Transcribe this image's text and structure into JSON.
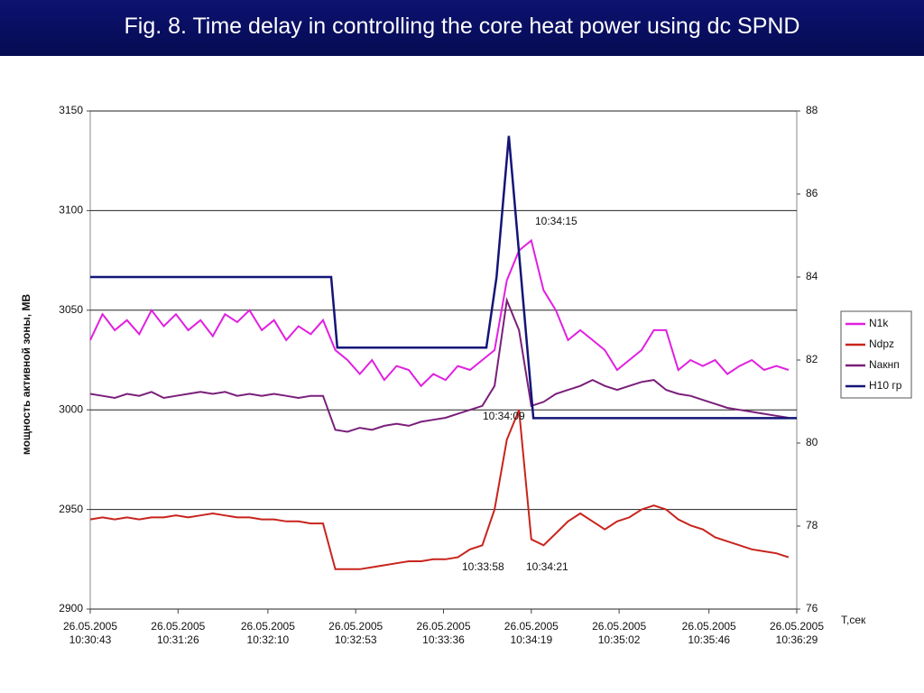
{
  "chart_data": {
    "type": "line",
    "title": "Fig. 8. Time delay in controlling the core heat power using dc SPND",
    "ylabel": "мощность активной зоны, МВ",
    "xlabel": "T,сек",
    "xlim": [
      0,
      346
    ],
    "xticks": [
      {
        "value": 0,
        "label": "26.05.2005 10:30:43"
      },
      {
        "value": 43,
        "label": "26.05.2005 10:31:26"
      },
      {
        "value": 87,
        "label": "26.05.2005 10:32:10"
      },
      {
        "value": 130,
        "label": "26.05.2005 10:32:53"
      },
      {
        "value": 173,
        "label": "26.05.2005 10:33:36"
      },
      {
        "value": 216,
        "label": "26.05.2005 10:34:19"
      },
      {
        "value": 259,
        "label": "26.05.2005 10:35:02"
      },
      {
        "value": 303,
        "label": "26.05.2005 10:35:46"
      },
      {
        "value": 346,
        "label": "26.05.2005 10:36:29"
      }
    ],
    "ylim": [
      2900,
      3150
    ],
    "yticks": [
      2900,
      2950,
      3000,
      3050,
      3100,
      3150
    ],
    "y2lim": [
      76,
      88
    ],
    "y2ticks": [
      76,
      78,
      80,
      82,
      84,
      86,
      88
    ],
    "grid": true,
    "legend": "right",
    "x": [
      0,
      6,
      12,
      18,
      24,
      30,
      36,
      42,
      48,
      54,
      60,
      66,
      72,
      78,
      84,
      90,
      96,
      102,
      108,
      114,
      120,
      126,
      132,
      138,
      144,
      150,
      156,
      162,
      168,
      174,
      180,
      186,
      192,
      198,
      204,
      210,
      216,
      222,
      228,
      234,
      240,
      246,
      252,
      258,
      264,
      270,
      276,
      282,
      288,
      294,
      300,
      306,
      312,
      318,
      324,
      330,
      336,
      342
    ],
    "series": [
      {
        "name": "N1k",
        "color": "#e020e0",
        "values": [
          3035,
          3048,
          3040,
          3045,
          3038,
          3050,
          3042,
          3048,
          3040,
          3045,
          3037,
          3048,
          3044,
          3050,
          3040,
          3045,
          3035,
          3042,
          3038,
          3045,
          3030,
          3025,
          3018,
          3025,
          3015,
          3022,
          3020,
          3012,
          3018,
          3015,
          3022,
          3020,
          3025,
          3030,
          3065,
          3080,
          3085,
          3060,
          3050,
          3035,
          3040,
          3035,
          3030,
          3020,
          3025,
          3030,
          3040,
          3040,
          3020,
          3025,
          3022,
          3025,
          3018,
          3022,
          3025,
          3020,
          3022,
          3020
        ]
      },
      {
        "name": "Ndpz",
        "color": "#c8241c",
        "values": [
          2945,
          2946,
          2945,
          2946,
          2945,
          2946,
          2946,
          2947,
          2946,
          2947,
          2948,
          2947,
          2946,
          2946,
          2945,
          2945,
          2944,
          2944,
          2943,
          2943,
          2920,
          2920,
          2920,
          2921,
          2922,
          2923,
          2924,
          2924,
          2925,
          2925,
          2926,
          2930,
          2932,
          2950,
          2985,
          3000,
          2935,
          2932,
          2938,
          2944,
          2948,
          2944,
          2940,
          2944,
          2946,
          2950,
          2952,
          2950,
          2945,
          2942,
          2940,
          2936,
          2934,
          2932,
          2930,
          2929,
          2928,
          2926
        ]
      },
      {
        "name": "Nакнп",
        "color": "#7a1f7a",
        "values": [
          3008,
          3007,
          3006,
          3008,
          3007,
          3009,
          3006,
          3007,
          3008,
          3009,
          3008,
          3009,
          3007,
          3008,
          3007,
          3008,
          3007,
          3006,
          3007,
          3007,
          2990,
          2989,
          2991,
          2990,
          2992,
          2993,
          2992,
          2994,
          2995,
          2996,
          2998,
          3000,
          3002,
          3012,
          3055,
          3040,
          3002,
          3004,
          3008,
          3010,
          3012,
          3015,
          3012,
          3010,
          3012,
          3014,
          3015,
          3010,
          3008,
          3007,
          3005,
          3003,
          3001,
          3000,
          2999,
          2998,
          2997,
          2996
        ]
      },
      {
        "name": "H10 гр",
        "color": "#141478",
        "axis": "y2",
        "x": [
          0,
          118,
          121,
          194,
          199,
          205,
          211,
          217,
          346
        ],
        "values": [
          84,
          84,
          82.3,
          82.3,
          84,
          87.4,
          84,
          80.6,
          80.6
        ]
      }
    ],
    "annotations": [
      "10:34:15",
      "10:34:09",
      "10:33:58",
      "10:34:21"
    ]
  }
}
